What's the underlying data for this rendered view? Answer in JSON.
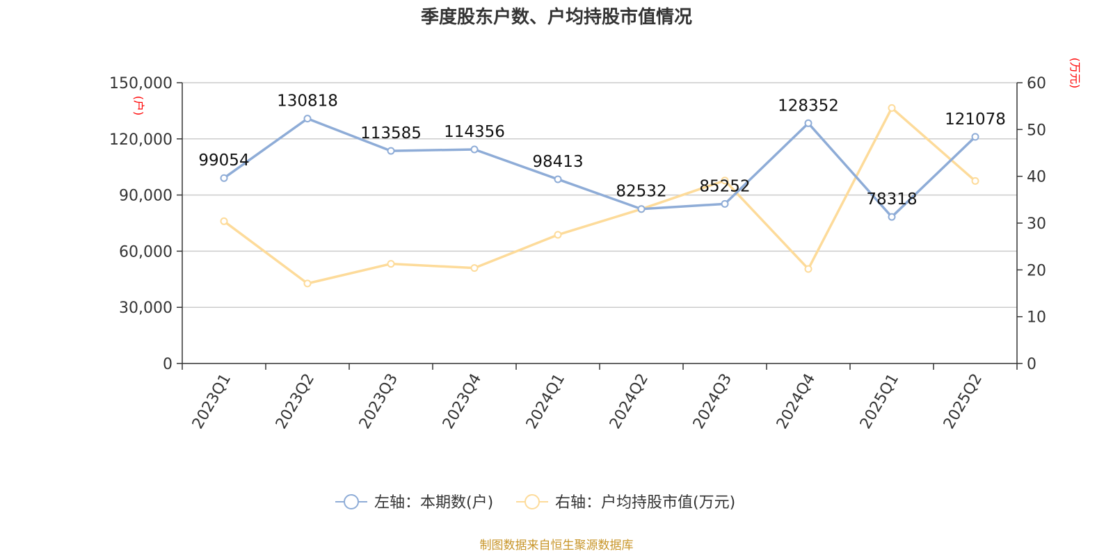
{
  "chart_data": {
    "type": "line",
    "title": "季度股东户数、户均持股市值情况",
    "categories": [
      "2023Q1",
      "2023Q2",
      "2023Q3",
      "2023Q4",
      "2024Q1",
      "2024Q2",
      "2024Q3",
      "2024Q4",
      "2025Q1",
      "2025Q2"
    ],
    "left_axis": {
      "unit": "(户)",
      "ylim": [
        0,
        150000
      ],
      "ticks": [
        "0",
        "30,000",
        "60,000",
        "90,000",
        "120,000",
        "150,000"
      ]
    },
    "right_axis": {
      "unit": "(万元)",
      "ylim": [
        0,
        60
      ],
      "ticks": [
        "0",
        "10",
        "20",
        "30",
        "40",
        "50",
        "60"
      ]
    },
    "series": [
      {
        "name": "左轴：本期数(户)",
        "axis": "left",
        "color": "#8eacd7",
        "values": [
          99054,
          130818,
          113585,
          114356,
          98413,
          82532,
          85252,
          128352,
          78318,
          121078
        ],
        "labels": [
          "99054",
          "130818",
          "113585",
          "114356",
          "98413",
          "82532",
          "85252",
          "128352",
          "78318",
          "121078"
        ]
      },
      {
        "name": "右轴：户均持股市值(万元)",
        "axis": "right",
        "color": "#fddb9a",
        "values": [
          30.4,
          17.1,
          21.3,
          20.4,
          27.5,
          33.0,
          39.1,
          20.2,
          54.6,
          39.0
        ]
      }
    ],
    "grid": true,
    "legend": "bottom",
    "source": "制图数据来自恒生聚源数据库"
  }
}
